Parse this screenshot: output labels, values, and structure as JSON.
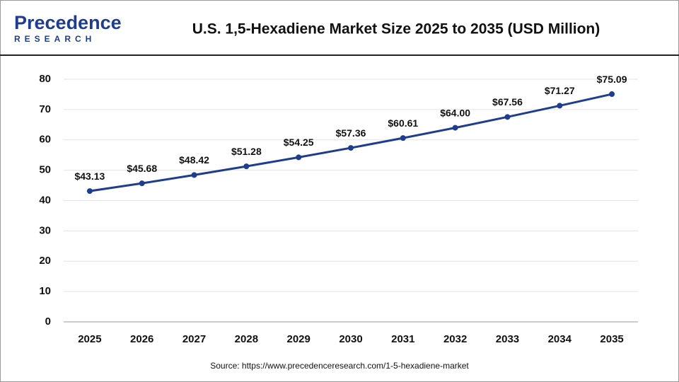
{
  "logo": {
    "name": "Precedence",
    "tagline": "RESEARCH"
  },
  "chart_data": {
    "type": "line",
    "title": "U.S. 1,5-Hexadiene Market Size 2025 to 2035 (USD Million)",
    "categories": [
      "2025",
      "2026",
      "2027",
      "2028",
      "2029",
      "2030",
      "2031",
      "2032",
      "2033",
      "2034",
      "2035"
    ],
    "values": [
      43.13,
      45.68,
      48.42,
      51.28,
      54.25,
      57.36,
      60.61,
      64.0,
      67.56,
      71.27,
      75.09
    ],
    "value_labels": [
      "$43.13",
      "$45.68",
      "$48.42",
      "$51.28",
      "$54.25",
      "$57.36",
      "$60.61",
      "$64.00",
      "$67.56",
      "$71.27",
      "$75.09"
    ],
    "color": "#1f3d8f",
    "ylim": [
      0,
      80
    ],
    "yticks": [
      0,
      10,
      20,
      30,
      40,
      50,
      60,
      70,
      80
    ],
    "grid": true,
    "source": "Source: https://www.precedenceresearch.com/1-5-hexadiene-market"
  }
}
